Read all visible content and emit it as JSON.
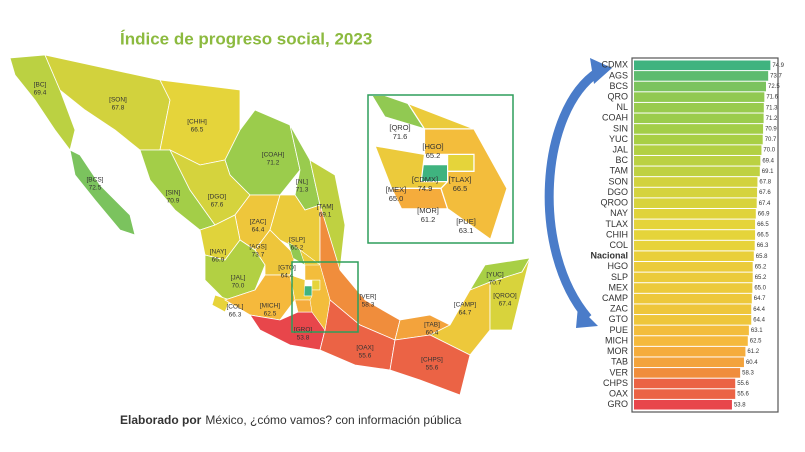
{
  "chart_data": [
    {
      "type": "map",
      "title": "Índice de progreso social, 2023",
      "categories": [
        "[BC]",
        "[SON]",
        "[CHIH]",
        "[COAH]",
        "[BCS]",
        "[SIN]",
        "[DGO]",
        "[NL]",
        "[TAM]",
        "[ZAC]",
        "[SLP]",
        "[NAY]",
        "[AGS]",
        "[GTO]",
        "[JAL]",
        "[COL]",
        "[MICH]",
        "[VER]",
        "[GRO]",
        "[OAX]",
        "[TAB]",
        "[CAMP]",
        "[YUC]",
        "[QROO]",
        "[CHPS]"
      ],
      "values": [
        69.4,
        67.8,
        66.5,
        71.2,
        72.5,
        70.9,
        67.6,
        71.3,
        69.1,
        64.4,
        65.2,
        66.9,
        73.7,
        64.4,
        70.0,
        66.3,
        62.5,
        58.3,
        53.8,
        55.6,
        60.4,
        64.7,
        70.7,
        67.4,
        55.6
      ],
      "value_labels": [
        "69.4",
        "67.8",
        "66.5",
        "71.2",
        "72.5",
        "70.9",
        "67.6",
        "71.3",
        "69.1",
        "64.4",
        "65.2",
        "66.9",
        "73.7",
        "64.4",
        "70.0",
        "66.3",
        "62.5",
        "58.3",
        "53.8",
        "55.6",
        "60.4",
        "64.7",
        "70.7",
        "67.4",
        "55.6"
      ],
      "inset_categories": [
        "[QRO]",
        "[HGO]",
        "[CDMX]",
        "[TLAX]",
        "[MEX]",
        "[MOR]",
        "[PUE]"
      ],
      "inset_values": [
        71.6,
        65.2,
        74.9,
        66.5,
        65.0,
        61.2,
        63.1
      ],
      "inset_value_labels": [
        "71.6",
        "65.2",
        "74.9",
        "66.5",
        "65.0",
        "61.2",
        "63.1"
      ],
      "colors": [
        "#e8464b",
        "#f08a3c",
        "#f6b73c",
        "#e6d43a",
        "#a8cf45",
        "#3fb37f"
      ]
    },
    {
      "type": "bar",
      "orientation": "horizontal",
      "categories": [
        "CDMX",
        "AGS",
        "BCS",
        "QRO",
        "NL",
        "COAH",
        "SIN",
        "YUC",
        "JAL",
        "BC",
        "TAM",
        "SON",
        "DGO",
        "QROO",
        "NAY",
        "TLAX",
        "CHIH",
        "COL",
        "Nacional",
        "HGO",
        "SLP",
        "MEX",
        "CAMP",
        "ZAC",
        "GTO",
        "PUE",
        "MICH",
        "MOR",
        "TAB",
        "VER",
        "CHPS",
        "OAX",
        "GRO"
      ],
      "values": [
        74.9,
        73.7,
        72.5,
        71.6,
        71.3,
        71.2,
        70.9,
        70.7,
        70.0,
        69.4,
        69.1,
        67.8,
        67.6,
        67.4,
        66.9,
        66.5,
        66.5,
        66.3,
        65.8,
        65.2,
        65.2,
        65.0,
        64.7,
        64.4,
        64.4,
        63.1,
        62.5,
        61.2,
        60.4,
        58.3,
        55.6,
        55.6,
        53.8
      ],
      "value_labels": [
        "74.9",
        "73.7",
        "72.5",
        "71.6",
        "71.3",
        "71.2",
        "70.9",
        "70.7",
        "70.0",
        "69.4",
        "69.1",
        "67.8",
        "67.6",
        "67.4",
        "66.9",
        "66.5",
        "66.5",
        "66.3",
        "65.8",
        "65.2",
        "65.2",
        "65.0",
        "64.7",
        "64.4",
        "64.4",
        "63.1",
        "62.5",
        "61.2",
        "60.4",
        "58.3",
        "55.6",
        "55.6",
        "53.8"
      ],
      "xlim": [
        0,
        78
      ],
      "colors": [
        "#e8464b",
        "#f08a3c",
        "#f6b73c",
        "#e6d43a",
        "#a8cf45",
        "#3fb37f"
      ],
      "highlight": {
        "index": 18,
        "color": "#e8474a"
      }
    }
  ],
  "footer": {
    "bold": "Elaborado por",
    "text": "México, ¿cómo vamos? con información pública"
  }
}
